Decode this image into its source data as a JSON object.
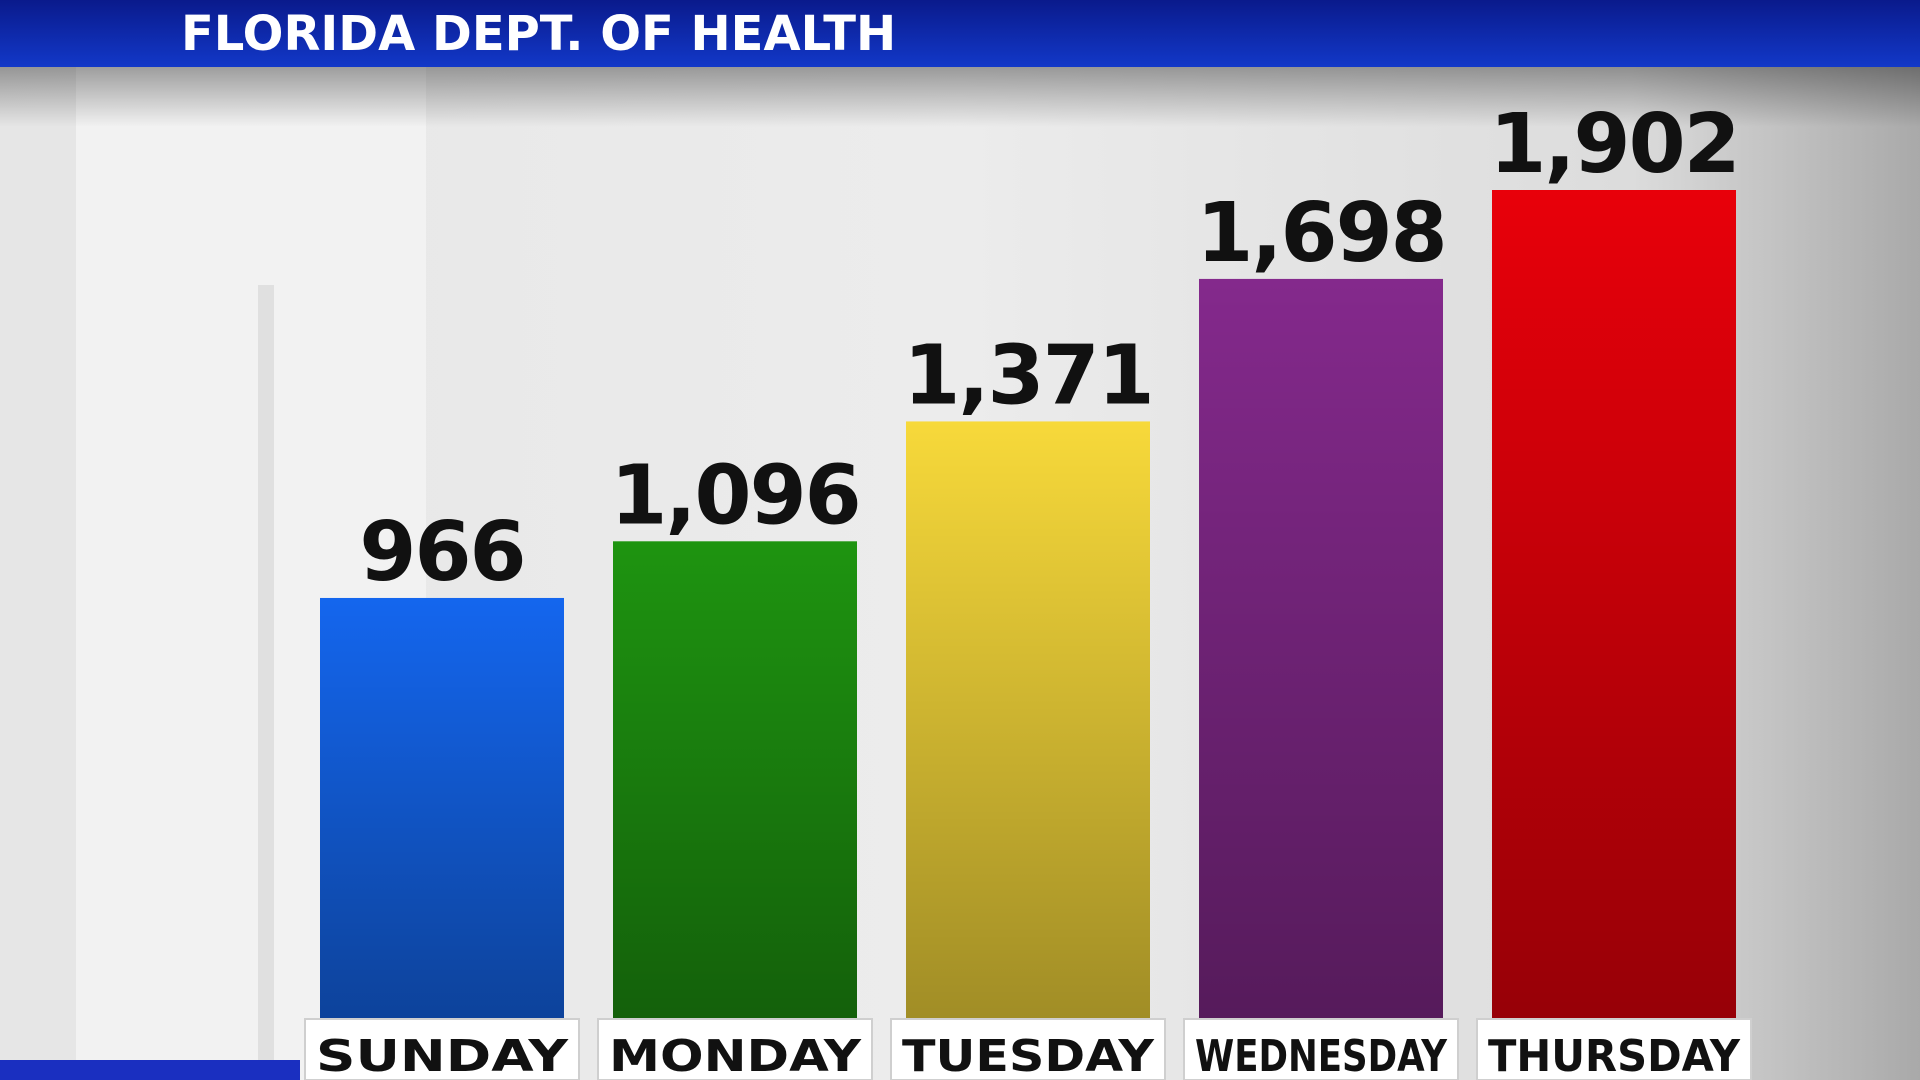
{
  "chart_data": {
    "type": "bar",
    "title": "FLORIDA DEPT. OF HEALTH",
    "categories": [
      "SUNDAY",
      "MONDAY",
      "TUESDAY",
      "WEDNESDAY",
      "THURSDAY"
    ],
    "values": [
      966,
      1096,
      1371,
      1698,
      1902
    ],
    "value_labels": [
      "966",
      "1,096",
      "1,371",
      "1,698",
      "1,902"
    ],
    "colors": [
      "#1466ee",
      "#1e9410",
      "#f7d93a",
      "#84298c",
      "#e8000a"
    ]
  }
}
